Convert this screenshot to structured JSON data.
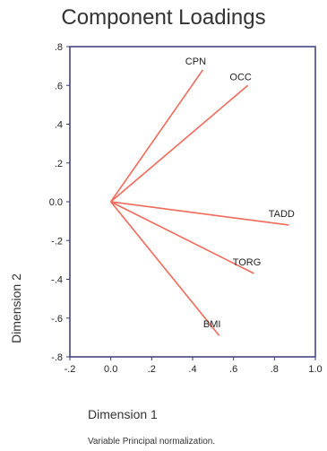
{
  "chart_data": {
    "type": "line",
    "title": "Component Loadings",
    "xlabel": "Dimension 1",
    "ylabel": "Dimension 2",
    "note": "Variable Principal normalization.",
    "xlim": [
      -0.2,
      1.0
    ],
    "ylim": [
      -0.8,
      0.8
    ],
    "x_ticks": [
      -0.2,
      0.0,
      0.2,
      0.4,
      0.6,
      0.8,
      1.0
    ],
    "x_tick_labels": [
      "-.2",
      "0.0",
      ".2",
      ".4",
      ".6",
      ".8",
      "1.0"
    ],
    "y_ticks": [
      0.8,
      0.6,
      0.4,
      0.2,
      0.0,
      -0.2,
      -0.4,
      -0.6,
      -0.8
    ],
    "y_tick_labels": [
      ".8",
      ".6",
      ".4",
      ".2",
      "0.0",
      "-.2",
      "-.4",
      "-.6",
      "-.8"
    ],
    "origin": [
      0.0,
      0.0
    ],
    "vectors": [
      {
        "name": "CPN",
        "x": 0.45,
        "y": 0.68
      },
      {
        "name": "OCC",
        "x": 0.67,
        "y": 0.6
      },
      {
        "name": "TADD",
        "x": 0.87,
        "y": -0.12
      },
      {
        "name": "TORG",
        "x": 0.7,
        "y": -0.37
      },
      {
        "name": "BMI",
        "x": 0.53,
        "y": -0.69
      }
    ],
    "grid": false,
    "line_color": "#f06a5a",
    "frame_color": "#3a3a7a"
  }
}
